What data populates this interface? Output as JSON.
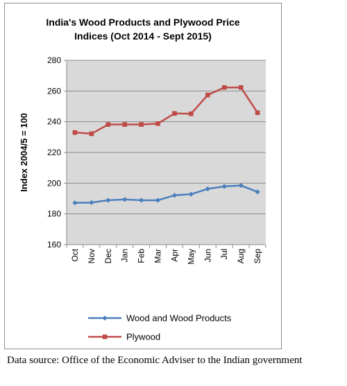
{
  "chart_data": {
    "type": "line",
    "title_lines": [
      "India's Wood Products and Plywood Price",
      "Indices (Oct 2014 - Sept 2015)"
    ],
    "ylabel": "Index 2004/5 = 100",
    "xlabel": "",
    "categories": [
      "Oct",
      "Nov",
      "Dec",
      "Jan",
      "Feb",
      "Mar",
      "Apr",
      "May",
      "Jun",
      "Jul",
      "Aug",
      "Sep"
    ],
    "ylim": [
      160,
      280
    ],
    "yticks": [
      160,
      180,
      200,
      220,
      240,
      260,
      280
    ],
    "grid": true,
    "legend_position": "bottom",
    "series": [
      {
        "name": "Wood and Wood Products",
        "color": "#4a7ebb",
        "marker": "diamond",
        "values": [
          187.2,
          187.4,
          188.9,
          189.4,
          188.9,
          188.9,
          192.1,
          192.8,
          196.3,
          197.9,
          198.5,
          194.3
        ]
      },
      {
        "name": "Plywood",
        "color": "#be4b48",
        "marker": "square",
        "values": [
          233.0,
          232.2,
          238.2,
          238.2,
          238.2,
          238.8,
          245.4,
          245.2,
          257.4,
          262.3,
          262.3,
          245.9
        ]
      }
    ]
  },
  "caption": "Data source: Office of the Economic Adviser to the Indian government"
}
